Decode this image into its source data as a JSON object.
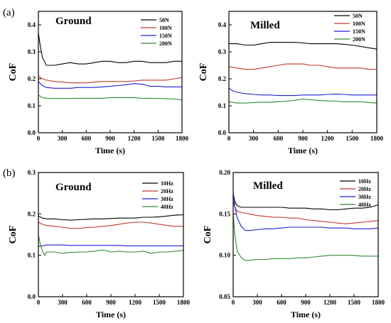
{
  "panel_labels": [
    "(a)",
    "(b)"
  ],
  "chart_data": [
    {
      "type": "line",
      "title": "Ground",
      "xlabel": "Time (s)",
      "ylabel": "CoF",
      "xlim": [
        0,
        1800
      ],
      "ylim": [
        0,
        0.45
      ],
      "xticks": [
        "0",
        "300",
        "600",
        "900",
        "1200",
        "1500",
        "1800"
      ],
      "yticks": [
        "0.0",
        "0.1",
        "0.2",
        "0.3",
        "0.4"
      ],
      "legend_position": "top-right",
      "series": [
        {
          "name": "50N",
          "color": "#000000",
          "x": [
            0,
            20,
            50,
            100,
            200,
            300,
            400,
            500,
            600,
            700,
            800,
            900,
            1000,
            1100,
            1200,
            1300,
            1400,
            1500,
            1600,
            1700,
            1800
          ],
          "y": [
            0.37,
            0.33,
            0.28,
            0.25,
            0.25,
            0.255,
            0.26,
            0.255,
            0.255,
            0.26,
            0.265,
            0.265,
            0.26,
            0.26,
            0.265,
            0.265,
            0.26,
            0.26,
            0.26,
            0.265,
            0.265
          ]
        },
        {
          "name": "100N",
          "color": "#c0392b",
          "x": [
            0,
            50,
            100,
            200,
            300,
            400,
            500,
            600,
            700,
            800,
            900,
            1000,
            1100,
            1200,
            1300,
            1400,
            1500,
            1600,
            1700,
            1800
          ],
          "y": [
            0.21,
            0.2,
            0.195,
            0.19,
            0.188,
            0.185,
            0.185,
            0.185,
            0.188,
            0.19,
            0.19,
            0.19,
            0.19,
            0.192,
            0.195,
            0.195,
            0.195,
            0.195,
            0.2,
            0.205
          ]
        },
        {
          "name": "150N",
          "color": "#1f1fd6",
          "x": [
            0,
            50,
            100,
            200,
            300,
            400,
            500,
            600,
            700,
            800,
            900,
            1000,
            1100,
            1200,
            1300,
            1400,
            1500,
            1600,
            1700,
            1800
          ],
          "y": [
            0.19,
            0.175,
            0.168,
            0.165,
            0.165,
            0.165,
            0.168,
            0.168,
            0.168,
            0.17,
            0.172,
            0.175,
            0.178,
            0.182,
            0.18,
            0.172,
            0.172,
            0.17,
            0.17,
            0.17
          ]
        },
        {
          "name": "200N",
          "color": "#2e8b2e",
          "x": [
            0,
            50,
            100,
            200,
            300,
            400,
            500,
            600,
            700,
            800,
            900,
            1000,
            1100,
            1200,
            1300,
            1400,
            1500,
            1600,
            1700,
            1800
          ],
          "y": [
            0.14,
            0.13,
            0.128,
            0.127,
            0.127,
            0.127,
            0.128,
            0.128,
            0.128,
            0.128,
            0.13,
            0.13,
            0.13,
            0.13,
            0.128,
            0.128,
            0.127,
            0.126,
            0.125,
            0.122
          ]
        }
      ]
    },
    {
      "type": "line",
      "title": "Milled",
      "xlabel": "Time (s)",
      "ylabel": "CoF",
      "xlim": [
        0,
        1800
      ],
      "ylim": [
        0,
        0.45
      ],
      "xticks": [
        "0",
        "300",
        "600",
        "900",
        "1200",
        "1500",
        "1800"
      ],
      "yticks": [
        "0.0",
        "0.1",
        "0.2",
        "0.3",
        "0.4"
      ],
      "legend_position": "top-right",
      "series": [
        {
          "name": "50N",
          "color": "#000000",
          "x": [
            0,
            100,
            200,
            300,
            400,
            500,
            600,
            700,
            800,
            900,
            1000,
            1100,
            1200,
            1300,
            1400,
            1500,
            1600,
            1700,
            1800
          ],
          "y": [
            0.33,
            0.33,
            0.325,
            0.325,
            0.33,
            0.335,
            0.335,
            0.335,
            0.335,
            0.333,
            0.33,
            0.33,
            0.33,
            0.33,
            0.328,
            0.325,
            0.32,
            0.315,
            0.31
          ]
        },
        {
          "name": "100N",
          "color": "#c0392b",
          "x": [
            0,
            100,
            200,
            300,
            400,
            500,
            600,
            700,
            800,
            900,
            1000,
            1100,
            1200,
            1300,
            1400,
            1500,
            1600,
            1700,
            1800
          ],
          "y": [
            0.245,
            0.24,
            0.235,
            0.235,
            0.24,
            0.245,
            0.25,
            0.255,
            0.255,
            0.255,
            0.25,
            0.25,
            0.245,
            0.24,
            0.24,
            0.24,
            0.24,
            0.235,
            0.235
          ]
        },
        {
          "name": "150N",
          "color": "#1f1fd6",
          "x": [
            0,
            50,
            100,
            200,
            300,
            400,
            500,
            600,
            700,
            800,
            900,
            1000,
            1100,
            1200,
            1300,
            1400,
            1500,
            1600,
            1700,
            1800
          ],
          "y": [
            0.165,
            0.155,
            0.15,
            0.145,
            0.142,
            0.14,
            0.14,
            0.138,
            0.138,
            0.138,
            0.14,
            0.14,
            0.14,
            0.142,
            0.143,
            0.142,
            0.14,
            0.14,
            0.14,
            0.14
          ]
        },
        {
          "name": "200N",
          "color": "#2e8b2e",
          "x": [
            0,
            100,
            200,
            300,
            400,
            500,
            600,
            700,
            800,
            900,
            1000,
            1100,
            1200,
            1300,
            1400,
            1500,
            1600,
            1700,
            1800
          ],
          "y": [
            0.115,
            0.11,
            0.11,
            0.112,
            0.113,
            0.113,
            0.115,
            0.117,
            0.12,
            0.125,
            0.122,
            0.12,
            0.118,
            0.117,
            0.115,
            0.115,
            0.115,
            0.112,
            0.11
          ]
        }
      ]
    },
    {
      "type": "line",
      "title": "Ground",
      "xlabel": "Time (s)",
      "ylabel": "CoF",
      "xlim": [
        0,
        1800
      ],
      "ylim": [
        0,
        0.3
      ],
      "xticks": [
        "0",
        "300",
        "600",
        "900",
        "1200",
        "1500",
        "1800"
      ],
      "yticks": [
        "0.0",
        "0.1",
        "0.2",
        "0.3"
      ],
      "legend_position": "top-right",
      "series": [
        {
          "name": "10Hz",
          "color": "#000000",
          "x": [
            0,
            50,
            100,
            200,
            300,
            400,
            500,
            600,
            700,
            800,
            900,
            1000,
            1100,
            1200,
            1300,
            1400,
            1500,
            1600,
            1700,
            1800
          ],
          "y": [
            0.195,
            0.19,
            0.188,
            0.188,
            0.186,
            0.185,
            0.186,
            0.187,
            0.188,
            0.188,
            0.189,
            0.19,
            0.19,
            0.19,
            0.192,
            0.192,
            0.193,
            0.195,
            0.197,
            0.198
          ]
        },
        {
          "name": "20Hz",
          "color": "#c0392b",
          "x": [
            0,
            50,
            100,
            200,
            300,
            400,
            500,
            600,
            700,
            800,
            900,
            1000,
            1100,
            1200,
            1300,
            1400,
            1500,
            1600,
            1700,
            1800
          ],
          "y": [
            0.18,
            0.175,
            0.172,
            0.17,
            0.168,
            0.165,
            0.165,
            0.167,
            0.168,
            0.17,
            0.172,
            0.175,
            0.178,
            0.18,
            0.18,
            0.178,
            0.175,
            0.172,
            0.17,
            0.17
          ]
        },
        {
          "name": "30Hz",
          "color": "#1f1fd6",
          "x": [
            0,
            50,
            100,
            200,
            300,
            400,
            500,
            600,
            700,
            800,
            900,
            1000,
            1100,
            1200,
            1300,
            1400,
            1500,
            1600,
            1700,
            1800
          ],
          "y": [
            0.122,
            0.123,
            0.125,
            0.125,
            0.125,
            0.124,
            0.124,
            0.124,
            0.124,
            0.124,
            0.124,
            0.124,
            0.123,
            0.123,
            0.123,
            0.123,
            0.123,
            0.123,
            0.123,
            0.123
          ]
        },
        {
          "name": "40Hz",
          "color": "#2e8b2e",
          "x": [
            0,
            20,
            50,
            80,
            100,
            200,
            300,
            400,
            500,
            600,
            700,
            800,
            900,
            1000,
            1100,
            1200,
            1300,
            1400,
            1500,
            1600,
            1700,
            1800
          ],
          "y": [
            0.15,
            0.13,
            0.11,
            0.1,
            0.108,
            0.108,
            0.105,
            0.107,
            0.108,
            0.108,
            0.11,
            0.113,
            0.108,
            0.11,
            0.108,
            0.108,
            0.11,
            0.105,
            0.108,
            0.108,
            0.11,
            0.112
          ]
        }
      ]
    },
    {
      "type": "line",
      "title": "Milled",
      "xlabel": "Time (s)",
      "ylabel": "CoF",
      "xlim": [
        0,
        1800
      ],
      "ylim": [
        0.05,
        0.2
      ],
      "xticks": [
        "0",
        "300",
        "600",
        "900",
        "1200",
        "1500",
        "1800"
      ],
      "yticks": [
        "0.05",
        "0.10",
        "0.15",
        "0.20"
      ],
      "legend_position": "top-right",
      "series": [
        {
          "name": "10Hz",
          "color": "#000000",
          "x": [
            0,
            20,
            50,
            100,
            200,
            300,
            400,
            500,
            600,
            700,
            800,
            900,
            1000,
            1100,
            1200,
            1300,
            1400,
            1500,
            1600,
            1700,
            1800
          ],
          "y": [
            0.175,
            0.165,
            0.16,
            0.158,
            0.158,
            0.158,
            0.158,
            0.158,
            0.158,
            0.157,
            0.157,
            0.157,
            0.156,
            0.156,
            0.155,
            0.155,
            0.156,
            0.157,
            0.157,
            0.158,
            0.161
          ]
        },
        {
          "name": "20Hz",
          "color": "#c0392b",
          "x": [
            0,
            20,
            50,
            100,
            200,
            300,
            400,
            500,
            600,
            700,
            800,
            900,
            1000,
            1100,
            1200,
            1300,
            1400,
            1500,
            1600,
            1700,
            1800
          ],
          "y": [
            0.165,
            0.158,
            0.153,
            0.152,
            0.15,
            0.148,
            0.147,
            0.146,
            0.146,
            0.145,
            0.145,
            0.143,
            0.142,
            0.141,
            0.14,
            0.139,
            0.138,
            0.139,
            0.14,
            0.141,
            0.142
          ]
        },
        {
          "name": "30Hz",
          "color": "#1f1fd6",
          "x": [
            0,
            20,
            50,
            100,
            150,
            200,
            300,
            400,
            500,
            600,
            700,
            800,
            900,
            1000,
            1100,
            1200,
            1300,
            1400,
            1500,
            1600,
            1700,
            1800
          ],
          "y": [
            0.175,
            0.16,
            0.145,
            0.135,
            0.13,
            0.13,
            0.131,
            0.132,
            0.132,
            0.133,
            0.134,
            0.134,
            0.134,
            0.134,
            0.134,
            0.133,
            0.133,
            0.133,
            0.132,
            0.132,
            0.132,
            0.133
          ]
        },
        {
          "name": "40Hz",
          "color": "#2e8b2e",
          "x": [
            0,
            20,
            50,
            100,
            150,
            200,
            300,
            400,
            500,
            600,
            700,
            800,
            900,
            1000,
            1100,
            1200,
            1300,
            1400,
            1500,
            1600,
            1700,
            1800
          ],
          "y": [
            0.15,
            0.125,
            0.105,
            0.097,
            0.094,
            0.094,
            0.095,
            0.095,
            0.096,
            0.096,
            0.096,
            0.097,
            0.097,
            0.098,
            0.099,
            0.1,
            0.1,
            0.1,
            0.1,
            0.099,
            0.099,
            0.099
          ]
        }
      ]
    }
  ]
}
